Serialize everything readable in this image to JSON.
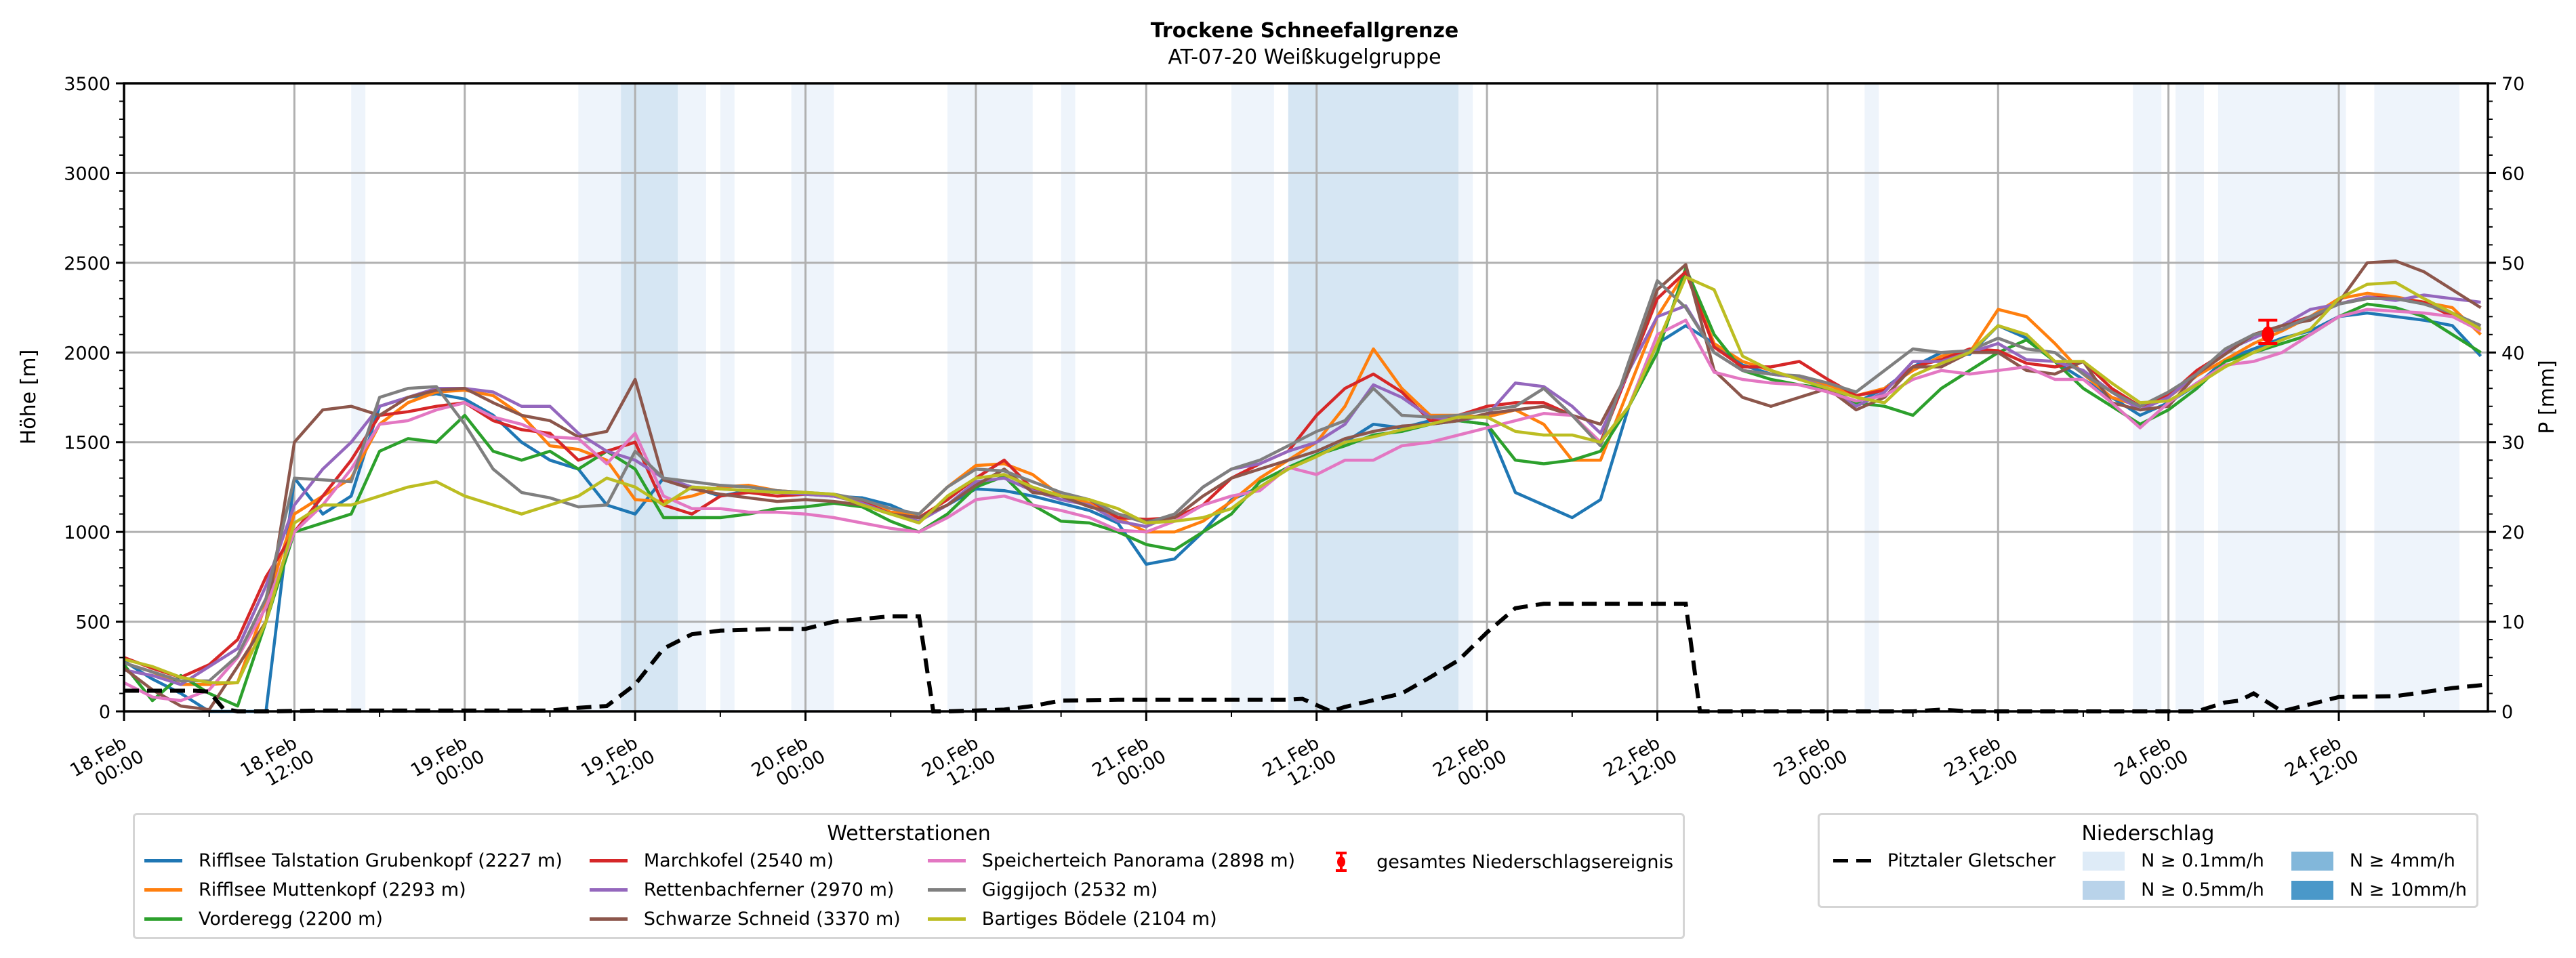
{
  "chart_data": {
    "type": "line",
    "title": "Trockene Schneefallgrenze",
    "subtitle": "AT-07-20 Weißkugelgruppe",
    "ylabel": "Höhe [m]",
    "y2label": "P [mm]",
    "ylim": [
      0,
      3500
    ],
    "y2lim": [
      0,
      70
    ],
    "yticks": [
      "0",
      "500",
      "1000",
      "1500",
      "2000",
      "2500",
      "3000",
      "3500"
    ],
    "y2ticks": [
      "0",
      "10",
      "20",
      "30",
      "40",
      "50",
      "60",
      "70"
    ],
    "x_unit": "hours since 18.Feb 00:00",
    "xlim": [
      0,
      166.5
    ],
    "xticks": [
      {
        "h": 0,
        "label": "18.Feb\n00:00"
      },
      {
        "h": 12,
        "label": "18.Feb\n12:00"
      },
      {
        "h": 24,
        "label": "19.Feb\n00:00"
      },
      {
        "h": 36,
        "label": "19.Feb\n12:00"
      },
      {
        "h": 48,
        "label": "20.Feb\n00:00"
      },
      {
        "h": 60,
        "label": "20.Feb\n12:00"
      },
      {
        "h": 72,
        "label": "21.Feb\n00:00"
      },
      {
        "h": 84,
        "label": "21.Feb\n12:00"
      },
      {
        "h": 96,
        "label": "22.Feb\n00:00"
      },
      {
        "h": 108,
        "label": "22.Feb\n12:00"
      },
      {
        "h": 120,
        "label": "23.Feb\n00:00"
      },
      {
        "h": 132,
        "label": "23.Feb\n12:00"
      },
      {
        "h": 144,
        "label": "24.Feb\n00:00"
      },
      {
        "h": 156,
        "label": "24.Feb\n12:00"
      }
    ],
    "grid": true,
    "x": [
      0,
      2,
      4,
      6,
      8,
      10,
      12,
      14,
      16,
      18,
      20,
      22,
      24,
      26,
      28,
      30,
      32,
      34,
      36,
      38,
      40,
      42,
      44,
      46,
      48,
      50,
      52,
      54,
      56,
      58,
      60,
      62,
      64,
      66,
      68,
      70,
      72,
      74,
      76,
      78,
      80,
      82,
      84,
      86,
      88,
      90,
      92,
      94,
      96,
      98,
      100,
      102,
      104,
      106,
      108,
      110,
      112,
      114,
      116,
      118,
      120,
      122,
      124,
      126,
      128,
      130,
      132,
      134,
      136,
      138,
      140,
      142,
      144,
      146,
      148,
      150,
      152,
      154,
      156,
      158,
      160,
      162,
      164,
      166
    ],
    "series": [
      {
        "name": "Rifflsee Talstation Grubenkopf (2227 m)",
        "color": "#1f77b4",
        "values": [
          280,
          180,
          100,
          0,
          0,
          0,
          1300,
          1100,
          1200,
          1700,
          1750,
          1770,
          1740,
          1650,
          1500,
          1400,
          1350,
          1150,
          1100,
          1300,
          1250,
          1200,
          1230,
          1220,
          1220,
          1200,
          1190,
          1150,
          1080,
          1150,
          1240,
          1230,
          1200,
          1160,
          1120,
          1050,
          820,
          850,
          1000,
          1180,
          1250,
          1350,
          1430,
          1500,
          1600,
          1580,
          1620,
          1620,
          1600,
          1220,
          1150,
          1080,
          1180,
          1700,
          2050,
          2150,
          2050,
          1930,
          1880,
          1860,
          1800,
          1720,
          1800,
          1920,
          2000,
          1990,
          2150,
          2080,
          1950,
          1850,
          1750,
          1650,
          1720,
          1820,
          1960,
          2020,
          2080,
          2120,
          2200,
          2220,
          2200,
          2180,
          2150,
          1980
        ]
      },
      {
        "name": "Rifflsee Muttenkopf (2293 m)",
        "color": "#ff7f0e",
        "values": [
          270,
          220,
          150,
          150,
          160,
          600,
          1100,
          1200,
          1300,
          1600,
          1720,
          1780,
          1790,
          1760,
          1650,
          1480,
          1460,
          1400,
          1180,
          1170,
          1200,
          1250,
          1260,
          1230,
          1220,
          1200,
          1180,
          1110,
          1100,
          1250,
          1370,
          1380,
          1320,
          1200,
          1160,
          1080,
          1000,
          1000,
          1060,
          1170,
          1300,
          1400,
          1500,
          1700,
          2020,
          1800,
          1650,
          1650,
          1640,
          1680,
          1600,
          1400,
          1400,
          1800,
          2200,
          2450,
          2050,
          1950,
          1900,
          1850,
          1820,
          1760,
          1800,
          1900,
          1980,
          2000,
          2240,
          2200,
          2050,
          1880,
          1750,
          1700,
          1750,
          1870,
          1960,
          2050,
          2120,
          2200,
          2300,
          2330,
          2310,
          2280,
          2250,
          2100
        ]
      },
      {
        "name": "Vorderegg (2200 m)",
        "color": "#2ca02c",
        "values": [
          260,
          60,
          200,
          100,
          30,
          500,
          1000,
          1050,
          1100,
          1450,
          1520,
          1500,
          1650,
          1450,
          1400,
          1450,
          1350,
          1450,
          1350,
          1080,
          1080,
          1080,
          1100,
          1130,
          1140,
          1160,
          1140,
          1060,
          1000,
          1100,
          1250,
          1310,
          1150,
          1060,
          1050,
          1000,
          930,
          900,
          1000,
          1100,
          1280,
          1360,
          1430,
          1480,
          1540,
          1560,
          1600,
          1620,
          1600,
          1400,
          1380,
          1400,
          1450,
          1700,
          2000,
          2470,
          2100,
          1900,
          1850,
          1820,
          1800,
          1720,
          1700,
          1650,
          1800,
          1900,
          2000,
          2070,
          1950,
          1800,
          1700,
          1600,
          1680,
          1800,
          1950,
          2000,
          2050,
          2100,
          2200,
          2270,
          2250,
          2200,
          2100,
          2000
        ]
      },
      {
        "name": "Marchkofel (2540 m)",
        "color": "#d62728",
        "values": [
          300,
          240,
          190,
          260,
          400,
          750,
          1000,
          1200,
          1400,
          1650,
          1670,
          1700,
          1720,
          1620,
          1570,
          1550,
          1400,
          1450,
          1500,
          1150,
          1100,
          1200,
          1220,
          1200,
          1210,
          1200,
          1170,
          1100,
          1080,
          1180,
          1300,
          1400,
          1240,
          1200,
          1180,
          1080,
          1070,
          1080,
          1150,
          1300,
          1380,
          1450,
          1650,
          1800,
          1880,
          1780,
          1620,
          1650,
          1700,
          1720,
          1720,
          1650,
          1500,
          1900,
          2300,
          2450,
          2030,
          1920,
          1920,
          1950,
          1850,
          1760,
          1790,
          1920,
          1960,
          2020,
          2010,
          1940,
          1920,
          1950,
          1800,
          1700,
          1760,
          1900,
          2000,
          2100,
          2150,
          2200,
          2270,
          2310,
          2300,
          2280,
          2200,
          2150
        ]
      },
      {
        "name": "Rettenbachferner (2970 m)",
        "color": "#9467bd",
        "values": [
          230,
          200,
          150,
          250,
          350,
          700,
          1150,
          1350,
          1500,
          1700,
          1750,
          1800,
          1800,
          1780,
          1700,
          1700,
          1550,
          1450,
          1400,
          1300,
          1250,
          1240,
          1230,
          1220,
          1210,
          1200,
          1160,
          1100,
          1060,
          1150,
          1280,
          1300,
          1230,
          1180,
          1150,
          1060,
          1030,
          1100,
          1250,
          1350,
          1380,
          1450,
          1500,
          1600,
          1820,
          1750,
          1640,
          1620,
          1650,
          1830,
          1810,
          1700,
          1550,
          1900,
          2200,
          2260,
          2000,
          1900,
          1880,
          1860,
          1800,
          1700,
          1780,
          1950,
          1950,
          2000,
          2050,
          1960,
          1950,
          1900,
          1780,
          1680,
          1750,
          1880,
          2010,
          2080,
          2150,
          2240,
          2270,
          2310,
          2290,
          2320,
          2300,
          2280
        ]
      },
      {
        "name": "Schwarze Schneid (3370 m)",
        "color": "#8c564b",
        "values": [
          240,
          120,
          30,
          10,
          250,
          500,
          1500,
          1680,
          1700,
          1650,
          1750,
          1790,
          1800,
          1720,
          1650,
          1620,
          1530,
          1560,
          1850,
          1290,
          1240,
          1210,
          1190,
          1170,
          1180,
          1170,
          1150,
          1100,
          1080,
          1150,
          1260,
          1350,
          1220,
          1200,
          1140,
          1100,
          1060,
          1080,
          1200,
          1300,
          1350,
          1400,
          1450,
          1520,
          1560,
          1590,
          1600,
          1620,
          1660,
          1680,
          1700,
          1650,
          1600,
          1900,
          2350,
          2490,
          1900,
          1750,
          1700,
          1750,
          1800,
          1680,
          1750,
          1920,
          1920,
          2000,
          2000,
          1900,
          1880,
          1950,
          1720,
          1680,
          1700,
          1880,
          1990,
          2100,
          2150,
          2180,
          2280,
          2500,
          2510,
          2450,
          2350,
          2250
        ]
      },
      {
        "name": "Speicherteich Panorama (2898 m)",
        "color": "#e377c2",
        "values": [
          160,
          80,
          60,
          120,
          300,
          580,
          1000,
          1150,
          1350,
          1600,
          1620,
          1680,
          1720,
          1640,
          1600,
          1530,
          1520,
          1380,
          1550,
          1200,
          1130,
          1130,
          1110,
          1110,
          1100,
          1080,
          1050,
          1020,
          1000,
          1080,
          1180,
          1200,
          1150,
          1120,
          1080,
          1010,
          1000,
          1060,
          1150,
          1200,
          1230,
          1360,
          1320,
          1400,
          1400,
          1480,
          1500,
          1540,
          1580,
          1620,
          1660,
          1650,
          1500,
          1700,
          2100,
          2180,
          1890,
          1850,
          1830,
          1820,
          1780,
          1730,
          1760,
          1850,
          1900,
          1880,
          1900,
          1920,
          1850,
          1850,
          1720,
          1580,
          1720,
          1830,
          1930,
          1950,
          2000,
          2100,
          2200,
          2240,
          2230,
          2220,
          2200,
          2120
        ]
      },
      {
        "name": "Giggijoch (2532 m)",
        "color": "#7f7f7f",
        "values": [
          270,
          220,
          170,
          170,
          310,
          630,
          1300,
          1290,
          1280,
          1750,
          1800,
          1810,
          1600,
          1350,
          1220,
          1190,
          1140,
          1150,
          1450,
          1300,
          1280,
          1260,
          1250,
          1230,
          1220,
          1210,
          1180,
          1130,
          1100,
          1250,
          1350,
          1340,
          1280,
          1220,
          1180,
          1100,
          1050,
          1100,
          1250,
          1350,
          1400,
          1480,
          1560,
          1620,
          1800,
          1650,
          1640,
          1650,
          1680,
          1700,
          1800,
          1650,
          1480,
          1950,
          2400,
          2250,
          2000,
          1900,
          1880,
          1870,
          1830,
          1780,
          1900,
          2020,
          2000,
          2010,
          2080,
          2020,
          2000,
          1880,
          1780,
          1700,
          1780,
          1880,
          2020,
          2100,
          2130,
          2200,
          2270,
          2300,
          2300,
          2270,
          2220,
          2150
        ]
      },
      {
        "name": "Bartiges Bödele (2104 m)",
        "color": "#bcbd22",
        "values": [
          290,
          250,
          190,
          160,
          160,
          500,
          1050,
          1150,
          1150,
          1200,
          1250,
          1280,
          1200,
          1150,
          1100,
          1150,
          1200,
          1300,
          1250,
          1150,
          1250,
          1240,
          1230,
          1220,
          1220,
          1210,
          1150,
          1100,
          1050,
          1200,
          1300,
          1320,
          1250,
          1200,
          1180,
          1130,
          1050,
          1060,
          1080,
          1130,
          1250,
          1350,
          1420,
          1500,
          1530,
          1570,
          1600,
          1640,
          1640,
          1560,
          1540,
          1540,
          1500,
          1700,
          2050,
          2420,
          2350,
          1980,
          1900,
          1850,
          1800,
          1750,
          1720,
          1870,
          1940,
          2000,
          2150,
          2100,
          1950,
          1950,
          1830,
          1720,
          1730,
          1820,
          1920,
          2000,
          2070,
          2130,
          2300,
          2380,
          2390,
          2300,
          2220,
          2130
        ]
      }
    ],
    "dashed_series": {
      "name": "Pitztaler Gletscher",
      "color": "#000000",
      "axis": "right",
      "x": [
        0,
        5,
        6,
        7,
        8,
        10,
        14,
        20,
        30,
        32,
        34,
        36,
        38,
        40,
        42,
        44,
        46,
        48,
        50,
        54,
        56,
        57,
        58,
        62,
        64,
        66,
        70,
        74,
        80,
        82,
        83,
        85,
        86,
        90,
        92,
        94,
        96,
        98,
        100,
        102,
        104,
        106,
        108,
        110,
        111,
        112,
        114,
        120,
        126,
        128,
        130,
        140,
        146,
        148,
        149,
        150,
        152,
        156,
        160,
        164,
        166.5
      ],
      "values": [
        2.3,
        2.3,
        2.2,
        0.3,
        0,
        0,
        0.1,
        0.1,
        0.1,
        0.4,
        0.6,
        3,
        7,
        8.6,
        9,
        9.1,
        9.2,
        9.2,
        10,
        10.6,
        10.6,
        0,
        0,
        0.2,
        0.6,
        1.2,
        1.3,
        1.3,
        1.3,
        1.3,
        1.4,
        0,
        0.5,
        2,
        3.8,
        5.7,
        8.8,
        11.5,
        12,
        12,
        12,
        12,
        12,
        12,
        0,
        0,
        0,
        0,
        0,
        0.2,
        0,
        0,
        0,
        1,
        1.2,
        2,
        0,
        1.6,
        1.7,
        2.6,
        3
      ]
    },
    "error_marker": {
      "name": "gesamtes Niederschlagsereignis",
      "color": "#ff0000",
      "x": 151,
      "y": 2100,
      "yerr_low": 2050,
      "yerr_high": 2180
    },
    "precip_bands": [
      {
        "start": 16,
        "end": 17,
        "level": "N ≥ 0.1mm/h"
      },
      {
        "start": 32,
        "end": 35,
        "level": "N ≥ 0.1mm/h"
      },
      {
        "start": 35,
        "end": 39,
        "level": "N ≥ 0.5mm/h"
      },
      {
        "start": 39,
        "end": 41,
        "level": "N ≥ 0.1mm/h"
      },
      {
        "start": 42,
        "end": 43,
        "level": "N ≥ 0.1mm/h"
      },
      {
        "start": 47,
        "end": 50,
        "level": "N ≥ 0.1mm/h"
      },
      {
        "start": 58,
        "end": 64,
        "level": "N ≥ 0.1mm/h"
      },
      {
        "start": 66,
        "end": 67,
        "level": "N ≥ 0.1mm/h"
      },
      {
        "start": 78,
        "end": 81,
        "level": "N ≥ 0.1mm/h"
      },
      {
        "start": 82,
        "end": 94,
        "level": "N ≥ 0.5mm/h"
      },
      {
        "start": 94,
        "end": 95,
        "level": "N ≥ 0.1mm/h"
      },
      {
        "start": 122.6,
        "end": 123.6,
        "level": "N ≥ 0.1mm/h"
      },
      {
        "start": 141.5,
        "end": 143.5,
        "level": "N ≥ 0.1mm/h"
      },
      {
        "start": 144.5,
        "end": 146.5,
        "level": "N ≥ 0.1mm/h"
      },
      {
        "start": 147.5,
        "end": 156.5,
        "level": "N ≥ 0.1mm/h"
      },
      {
        "start": 158.5,
        "end": 164.5,
        "level": "N ≥ 0.1mm/h"
      }
    ],
    "legend_stations": {
      "title": "Wetterstationen",
      "placement": "bottom-center",
      "error_label": "gesamtes Niederschlagsereignis"
    },
    "legend_precip": {
      "title": "Niederschlag",
      "placement": "bottom-right",
      "dashed_label": "Pitztaler Gletscher",
      "levels": [
        {
          "label": "N ≥ 0.1mm/h",
          "color": "#deebf7"
        },
        {
          "label": "N ≥ 0.5mm/h",
          "color": "#b9d3ea"
        },
        {
          "label": "N ≥ 4mm/h",
          "color": "#82b7da"
        },
        {
          "label": "N ≥ 10mm/h",
          "color": "#4a98c9"
        }
      ]
    }
  }
}
